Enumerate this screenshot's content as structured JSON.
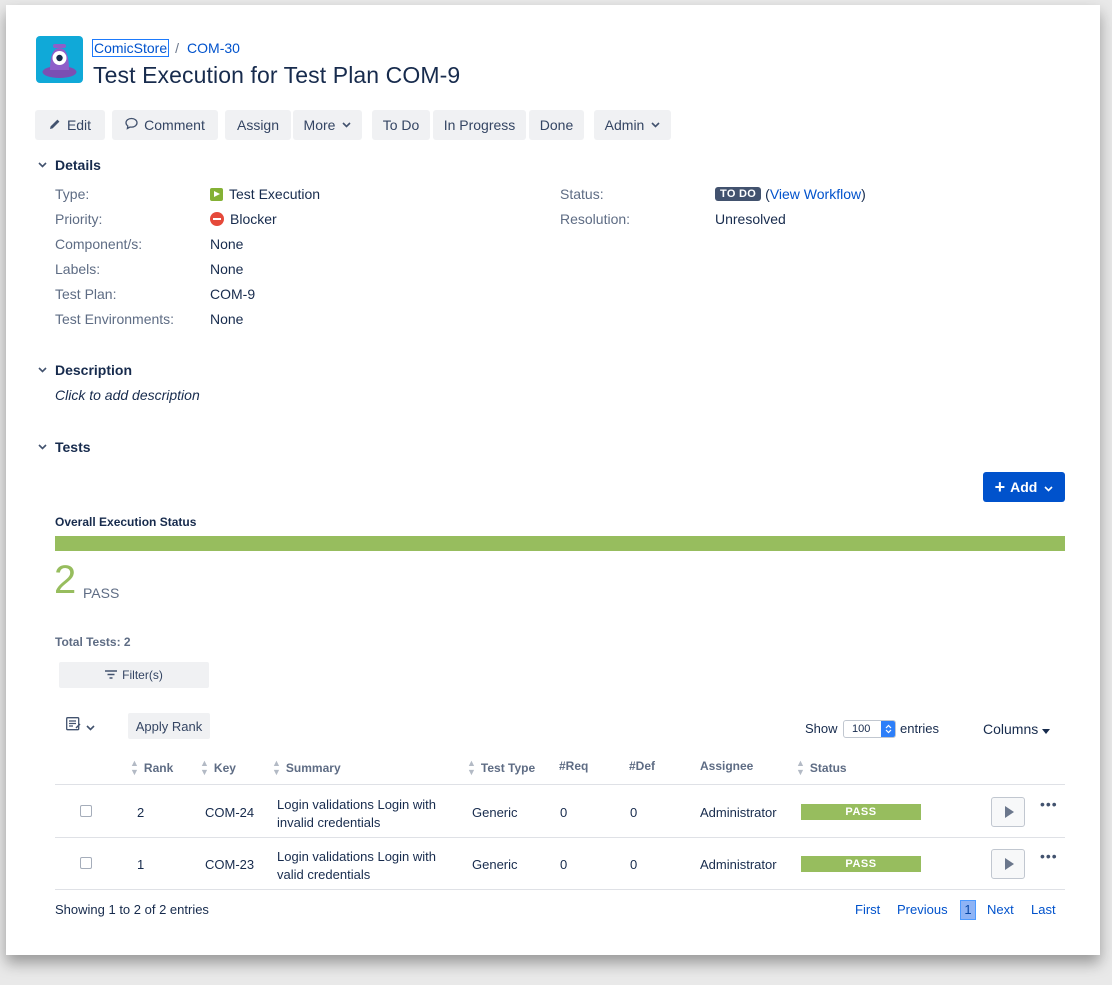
{
  "breadcrumb": {
    "project": "ComicStore",
    "separator": "/",
    "issue": "COM-30"
  },
  "title": "Test Execution for Test Plan COM-9",
  "toolbar": {
    "edit": "Edit",
    "comment": "Comment",
    "assign": "Assign",
    "more": "More",
    "todo": "To Do",
    "in_progress": "In Progress",
    "done": "Done",
    "admin": "Admin"
  },
  "details": {
    "heading": "Details",
    "type_label": "Type:",
    "type_value": "Test Execution",
    "priority_label": "Priority:",
    "priority_value": "Blocker",
    "components_label": "Component/s:",
    "components_value": "None",
    "labels_label": "Labels:",
    "labels_value": "None",
    "testplan_label": "Test Plan:",
    "testplan_value": "COM-9",
    "env_label": "Test Environments:",
    "env_value": "None",
    "status_label": "Status:",
    "status_badge": "TO DO",
    "status_open": "(",
    "status_link": "View Workflow",
    "status_close": ")",
    "resolution_label": "Resolution:",
    "resolution_value": "Unresolved"
  },
  "description": {
    "heading": "Description",
    "placeholder": "Click to add description"
  },
  "tests": {
    "heading": "Tests",
    "add_button": "Add",
    "overall_label": "Overall Execution Status",
    "pass_count": "2",
    "pass_label": "PASS",
    "pass_fraction": 1.0,
    "total": "Total Tests: 2",
    "filter_button": "Filter(s)",
    "apply_rank": "Apply Rank",
    "show_label": "Show",
    "entries_value": "100",
    "entries_label": "entries",
    "columns_button": "Columns",
    "headers": {
      "rank": "Rank",
      "key": "Key",
      "summary": "Summary",
      "type": "Test Type",
      "req": "#Req",
      "def": "#Def",
      "assignee": "Assignee",
      "status": "Status"
    },
    "rows": [
      {
        "rank": "2",
        "key": "COM-24",
        "summary_line1": "Login validations Login with",
        "summary_line2": "invalid credentials",
        "type": "Generic",
        "req": "0",
        "def": "0",
        "assignee": "Administrator",
        "status": "PASS"
      },
      {
        "rank": "1",
        "key": "COM-23",
        "summary_line1": "Login validations Login with",
        "summary_line2": "valid credentials",
        "type": "Generic",
        "req": "0",
        "def": "0",
        "assignee": "Administrator",
        "status": "PASS"
      }
    ],
    "showing": "Showing 1 to 2 of 2 entries",
    "pagination": {
      "first": "First",
      "previous": "Previous",
      "page": "1",
      "next": "Next",
      "last": "Last"
    }
  },
  "colors": {
    "primary": "#0052cc",
    "pass": "#97bd5e",
    "todo_badge": "#42526e",
    "blocker": "#e5493a"
  }
}
